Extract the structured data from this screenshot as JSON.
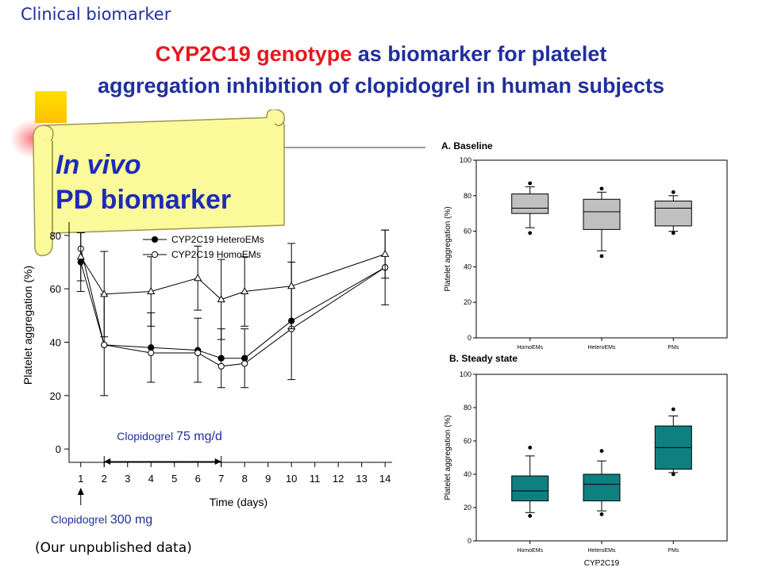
{
  "slide": {
    "heading": "Clinical biomarker",
    "title_red": "CYP2C19 genotype",
    "title_line1_rest": " as biomarker for platelet",
    "title_line2": "aggregation inhibition of clopidogrel in human subjects",
    "banner_line1": "In vivo",
    "banner_line2": "PD biomarker",
    "footnote": "(Our unpublished data)"
  },
  "colors": {
    "title_blue": "#1f2f9e",
    "title_red": "#e8161d",
    "banner_fill": "#fbfa9a",
    "box_gray": "#c0c0c0",
    "box_teal": "#0f8080"
  },
  "chart_data": [
    {
      "type": "line",
      "xlabel": "Time (days)",
      "ylabel": "Platelet aggregation  (%)",
      "x_ticks": [
        1,
        2,
        3,
        4,
        5,
        6,
        7,
        8,
        9,
        10,
        11,
        12,
        13,
        14
      ],
      "y_ticks": [
        0,
        20,
        40,
        60,
        80
      ],
      "xlim": [
        0.5,
        14.3
      ],
      "ylim": [
        -5,
        85
      ],
      "legend_position": "top",
      "series": [
        {
          "name": "CYP2C19 HeteroEMs",
          "marker": "filled-circle",
          "x": [
            1,
            2,
            4,
            6,
            7,
            8,
            10,
            14
          ],
          "y": [
            70,
            39,
            38,
            37,
            34,
            34,
            48,
            68
          ],
          "err": [
            11,
            19,
            13,
            12,
            11,
            11,
            22,
            14
          ]
        },
        {
          "name": "CYP2C19 HomoEMs",
          "marker": "open-circle",
          "x": [
            1,
            2,
            4,
            6,
            7,
            8,
            10,
            14
          ],
          "y": [
            75,
            39,
            36,
            36,
            31,
            32,
            45,
            68
          ],
          "err": [
            0,
            0,
            0,
            0,
            0,
            0,
            0,
            0
          ]
        },
        {
          "name": "",
          "marker": "open-triangle",
          "x": [
            1,
            2,
            4,
            6,
            7,
            8,
            10,
            14
          ],
          "y": [
            72,
            58,
            59,
            64,
            56,
            59,
            61,
            73
          ],
          "err": [
            9,
            16,
            13,
            12,
            15,
            13,
            16,
            9
          ]
        }
      ],
      "annotations": {
        "maintenance_label": "Clopidogrel",
        "maintenance_dose": "75 mg/d",
        "loading_label": "Clopidogrel",
        "loading_dose": "300 mg",
        "maintenance_span": [
          2,
          7
        ],
        "loading_day": 1
      }
    },
    {
      "type": "box",
      "title": "A. Baseline",
      "ylabel": "Platelet aggregation (%)",
      "ylim": [
        0,
        100
      ],
      "y_ticks": [
        0,
        20,
        40,
        60,
        80,
        100
      ],
      "categories": [
        "HomoEMs",
        "HeteroEMs",
        "PMs"
      ],
      "boxes": [
        {
          "whisker_low": 62,
          "q1": 70,
          "median": 73,
          "q3": 81,
          "whisker_high": 85,
          "outliers": [
            59,
            87
          ]
        },
        {
          "whisker_low": 49,
          "q1": 61,
          "median": 71,
          "q3": 78,
          "whisker_high": 82,
          "outliers": [
            46,
            84
          ]
        },
        {
          "whisker_low": 60,
          "q1": 63,
          "median": 73,
          "q3": 77,
          "whisker_high": 80,
          "outliers": [
            59,
            82
          ]
        }
      ]
    },
    {
      "type": "box",
      "title": "B. Steady state",
      "ylabel": "Platelet aggregation (%)",
      "xlabel": "CYP2C19",
      "ylim": [
        0,
        100
      ],
      "y_ticks": [
        0,
        20,
        40,
        60,
        80,
        100
      ],
      "categories": [
        "HomoEMs",
        "HeteroEMs",
        "PMs"
      ],
      "boxes": [
        {
          "whisker_low": 17,
          "q1": 24,
          "median": 30,
          "q3": 39,
          "whisker_high": 51,
          "outliers": [
            15,
            56
          ]
        },
        {
          "whisker_low": 18,
          "q1": 24,
          "median": 34,
          "q3": 40,
          "whisker_high": 48,
          "outliers": [
            16,
            54
          ]
        },
        {
          "whisker_low": 41,
          "q1": 43,
          "median": 56,
          "q3": 69,
          "whisker_high": 75,
          "outliers": [
            40,
            79
          ]
        }
      ]
    }
  ]
}
